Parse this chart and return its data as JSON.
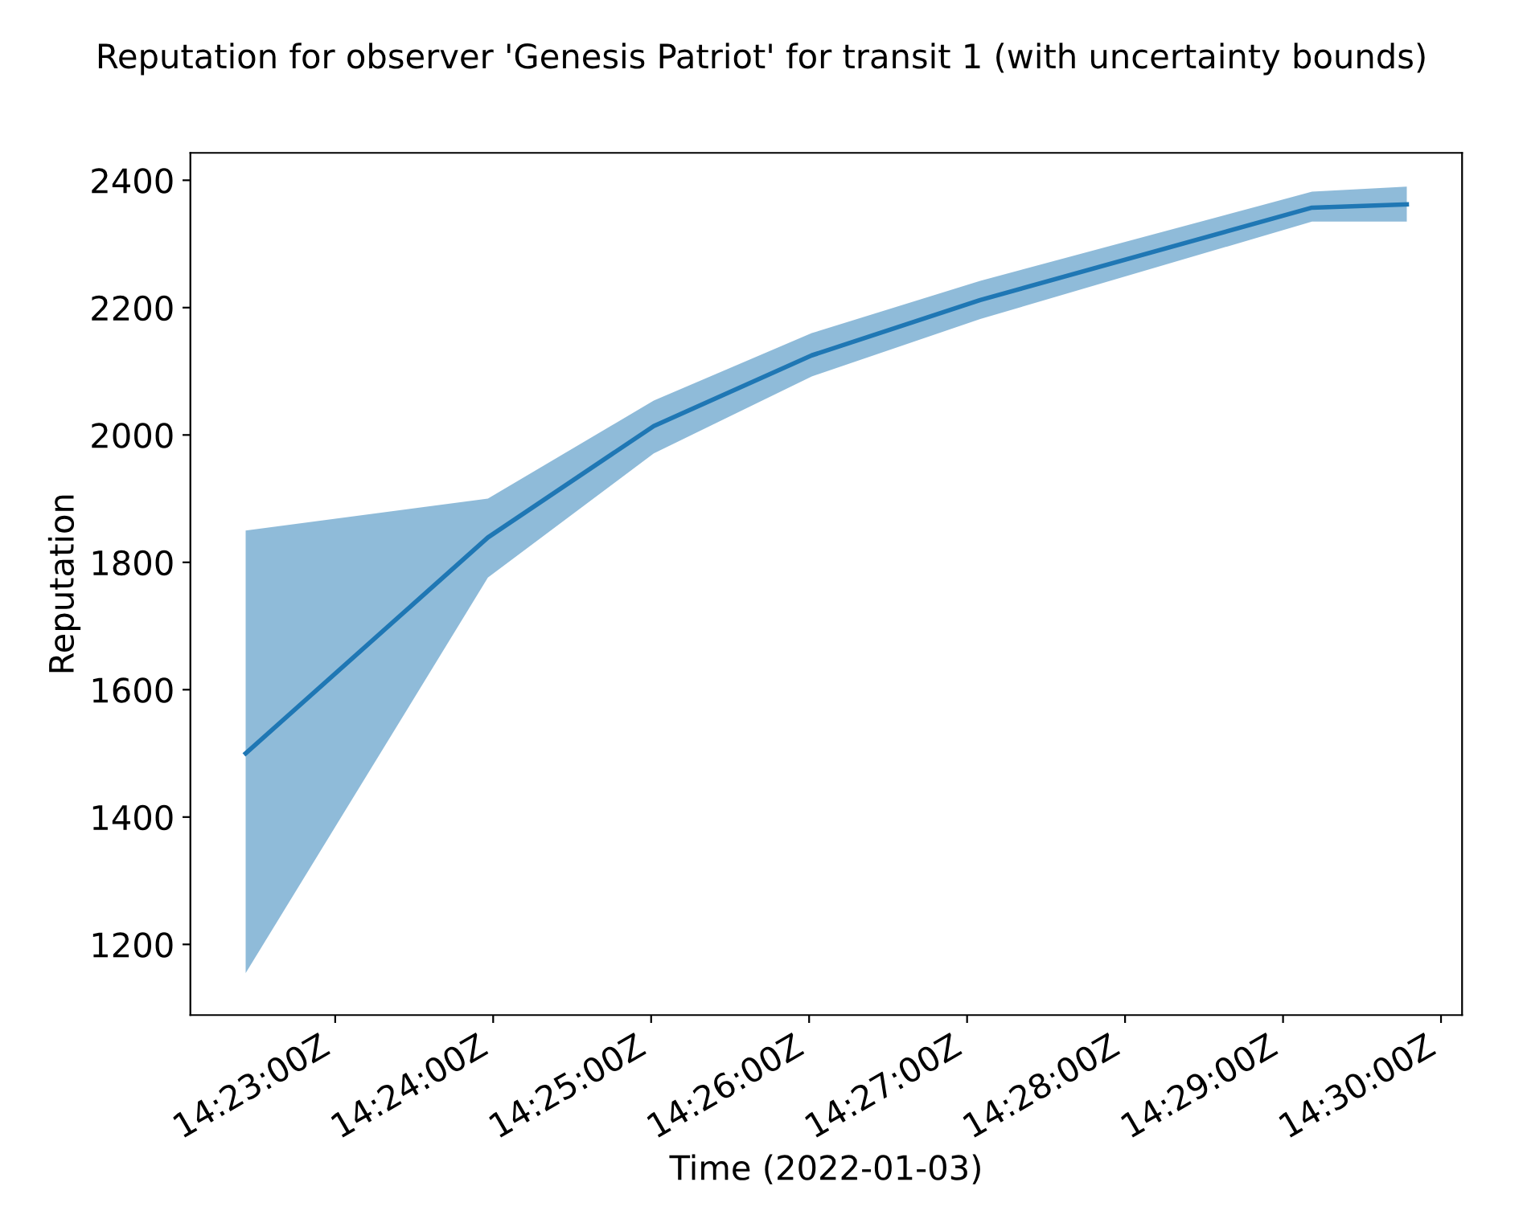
{
  "chart_data": {
    "type": "line",
    "title": "Reputation for observer 'Genesis Patriot' for transit 1 (with uncertainty bounds)",
    "xlabel": "Time (2022-01-03)",
    "ylabel": "Reputation",
    "series": [
      {
        "color": "#1f77b4",
        "x": [
          "2022-01-03T14:22:26",
          "2022-01-03T14:23:58",
          "2022-01-03T14:25:01",
          "2022-01-03T14:26:01",
          "2022-01-03T14:27:05",
          "2022-01-03T14:29:11",
          "2022-01-03T14:29:47"
        ],
        "values": [
          1500,
          1839,
          2014,
          2125,
          2212,
          2357,
          2362
        ],
        "lower": [
          1155,
          1776,
          1971,
          2092,
          2182,
          2335,
          2335
        ],
        "upper": [
          1850,
          1900,
          2054,
          2160,
          2242,
          2382,
          2390
        ]
      }
    ],
    "xlim": [
      "2022-01-03T14:22:05",
      "2022-01-03T14:30:08"
    ],
    "ylim": [
      1089,
      2443
    ],
    "xticks": [
      {
        "value": "2022-01-03T14:23",
        "label": "14:23:00Z"
      },
      {
        "value": "2022-01-03T14:24",
        "label": "14:24:00Z"
      },
      {
        "value": "2022-01-03T14:25",
        "label": "14:25:00Z"
      },
      {
        "value": "2022-01-03T14:26",
        "label": "14:26:00Z"
      },
      {
        "value": "2022-01-03T14:27",
        "label": "14:27:00Z"
      },
      {
        "value": "2022-01-03T14:28",
        "label": "14:28:00Z"
      },
      {
        "value": "2022-01-03T14:29",
        "label": "14:29:00Z"
      },
      {
        "value": "2022-01-03T14:30",
        "label": "14:30:00Z"
      }
    ],
    "yticks": [
      1200,
      1400,
      1600,
      1800,
      2000,
      2200,
      2400
    ]
  }
}
